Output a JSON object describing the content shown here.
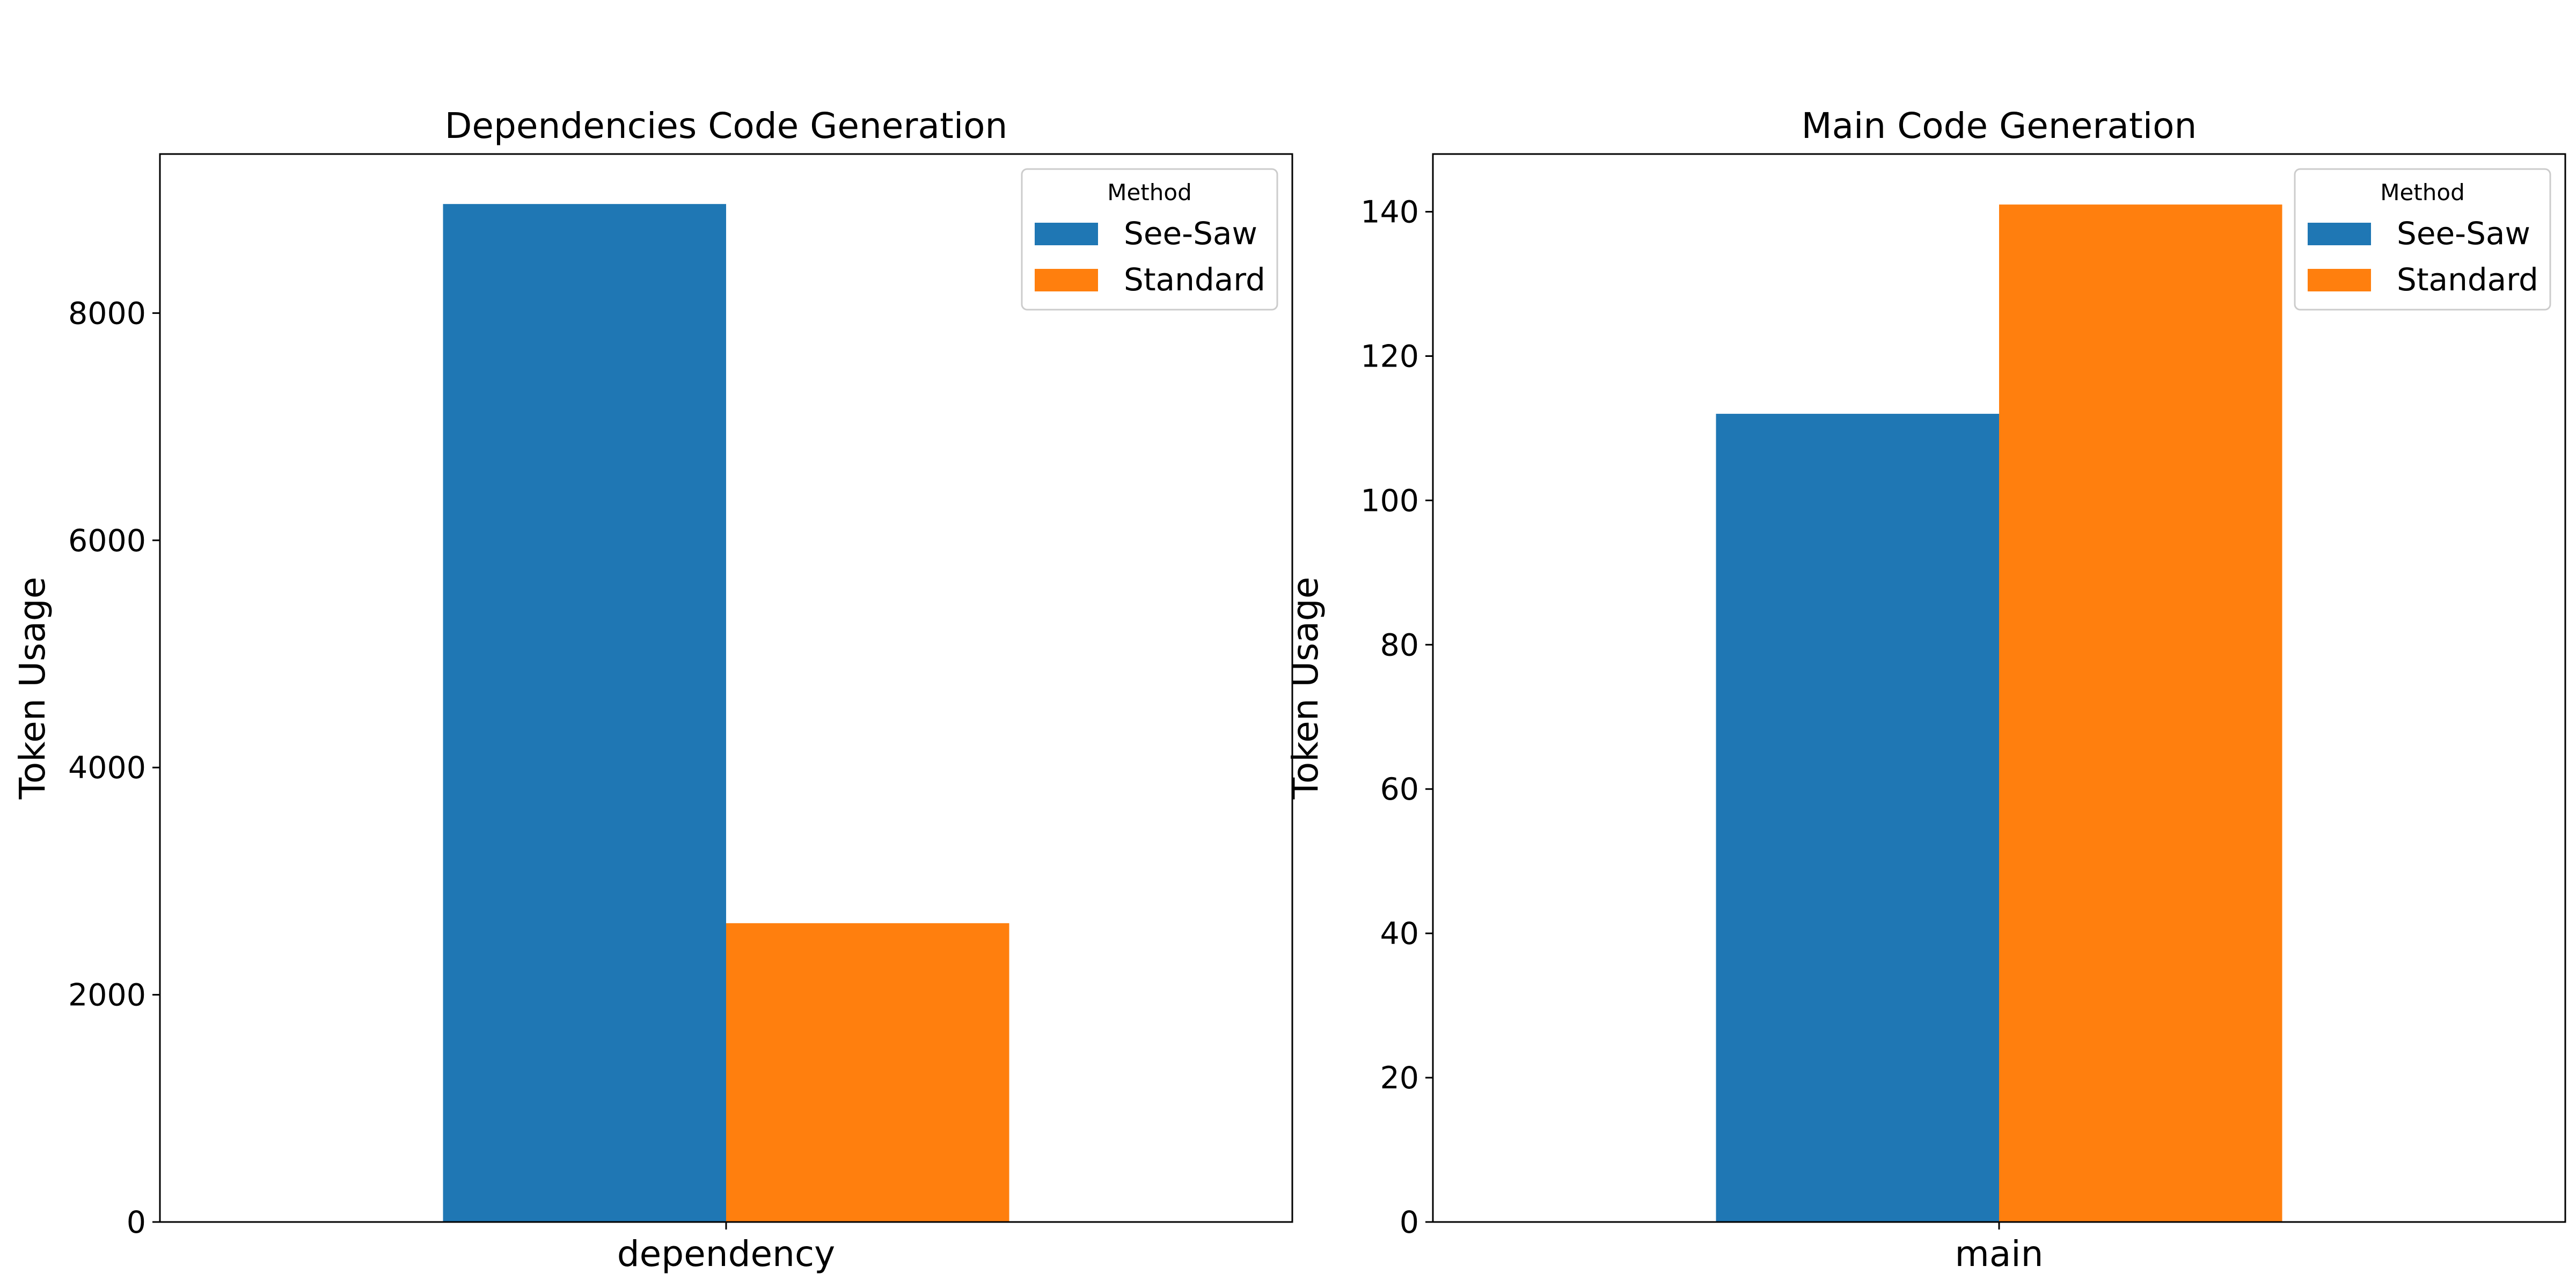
{
  "chart_data": [
    {
      "type": "bar",
      "title": "Dependencies Code Generation",
      "xlabel": "",
      "ylabel": "Token Usage",
      "categories": [
        "dependency"
      ],
      "series": [
        {
          "name": "See-Saw",
          "values": [
            8960
          ],
          "color": "#1f77b4"
        },
        {
          "name": "Standard",
          "values": [
            2630
          ],
          "color": "#ff7f0e"
        }
      ],
      "ylim": [
        0,
        9400
      ],
      "yticks": [
        0,
        2000,
        4000,
        6000,
        8000
      ],
      "grid": false,
      "legend": {
        "title": "Method",
        "placement": "top-right"
      }
    },
    {
      "type": "bar",
      "title": "Main Code Generation",
      "xlabel": "",
      "ylabel": "Token Usage",
      "categories": [
        "main"
      ],
      "series": [
        {
          "name": "See-Saw",
          "values": [
            112
          ],
          "color": "#1f77b4"
        },
        {
          "name": "Standard",
          "values": [
            141
          ],
          "color": "#ff7f0e"
        }
      ],
      "ylim": [
        0,
        148
      ],
      "yticks": [
        0,
        20,
        40,
        60,
        80,
        100,
        120,
        140
      ],
      "grid": false,
      "legend": {
        "title": "Method",
        "placement": "top-right"
      }
    }
  ]
}
